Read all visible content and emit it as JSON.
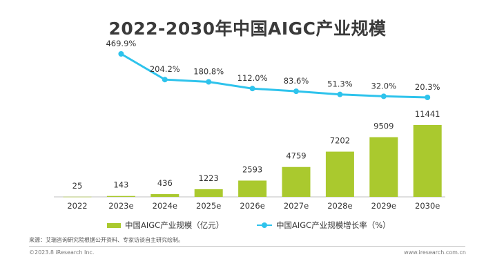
{
  "title": "2022-2030年中国AIGC产业规模",
  "chart_data": {
    "type": "bar+line",
    "categories": [
      "2022",
      "2023e",
      "2024e",
      "2025e",
      "2026e",
      "2027e",
      "2028e",
      "2029e",
      "2030e"
    ],
    "bar_series": {
      "name": "中国AIGC产业规模（亿元）",
      "values": [
        25,
        143,
        436,
        1223,
        2593,
        4759,
        7202,
        9509,
        11441
      ],
      "labels": [
        "25",
        "143",
        "436",
        "1223",
        "2593",
        "4759",
        "7202",
        "9509",
        "11441"
      ]
    },
    "line_series": {
      "name": "中国AIGC产业规模增长率（%）",
      "values": [
        469.9,
        204.2,
        180.8,
        112.0,
        83.6,
        51.3,
        32.0,
        20.3
      ],
      "labels": [
        "469.9%",
        "204.2%",
        "180.8%",
        "112.0%",
        "83.6%",
        "51.3%",
        "32.0%",
        "20.3%"
      ],
      "start_index": 1
    },
    "bar_color": "#aac92e",
    "line_color": "#2ec3ec",
    "legend_position": "bottom"
  },
  "source": "来源：艾瑞咨询研究院根据公开资料、专家访谈自主研究绘制。",
  "copyright": "©2023.8 iResearch Inc.",
  "website": "www.iresearch.com.cn"
}
